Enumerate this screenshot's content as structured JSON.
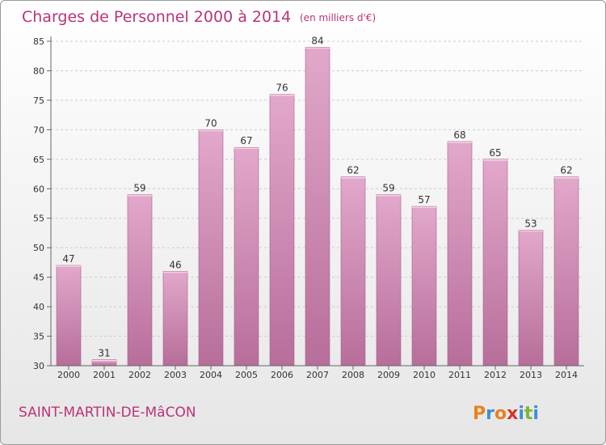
{
  "header": {
    "title": "Charges de Personnel 2000 à 2014",
    "subtitle": "(en milliers d'€)"
  },
  "footer": {
    "commune": "SAINT-MARTIN-DE-MâCON",
    "brand": "Proxiti"
  },
  "colors": {
    "bar_top": "#e2a8cb",
    "bar_bottom": "#b76e9a",
    "title": "#b8347a",
    "grid": "#cccccc"
  },
  "chart_data": {
    "type": "bar",
    "categories": [
      "2000",
      "2001",
      "2002",
      "2003",
      "2004",
      "2005",
      "2006",
      "2007",
      "2008",
      "2009",
      "2010",
      "2011",
      "2012",
      "2013",
      "2014"
    ],
    "values": [
      47,
      31,
      59,
      46,
      70,
      67,
      76,
      84,
      62,
      59,
      57,
      68,
      65,
      53,
      62
    ],
    "ylim": [
      30,
      85
    ],
    "yticks": [
      30,
      35,
      40,
      45,
      50,
      55,
      60,
      65,
      70,
      75,
      80,
      85
    ],
    "grid": true
  }
}
